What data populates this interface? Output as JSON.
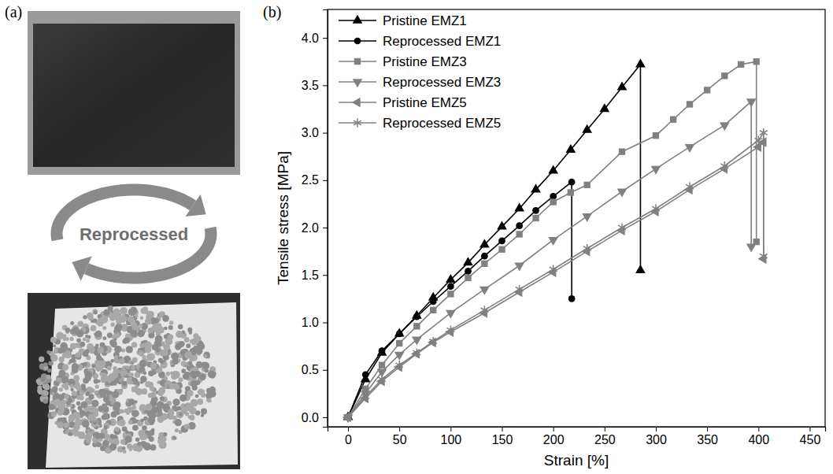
{
  "photos": {
    "panel_label": "(a)",
    "cycle_label": "Reprocessed"
  },
  "chart_data": {
    "type": "line",
    "panel_label": "(b)",
    "x_label": "Strain [%]",
    "y_label": "Tensile stress [MPa]",
    "xlim": [
      -20,
      465
    ],
    "ylim": [
      -0.1,
      4.3
    ],
    "xticks": [
      0,
      50,
      100,
      150,
      200,
      250,
      300,
      350,
      400,
      450
    ],
    "yticks": [
      {
        "value": 0,
        "label": "0.0"
      },
      0.5,
      {
        "value": 1,
        "label": "1.0"
      },
      1.5,
      {
        "value": 2,
        "label": "2.0"
      },
      2.5,
      {
        "value": 3,
        "label": "3.0"
      },
      3.5,
      {
        "value": 4,
        "label": "4.0"
      }
    ],
    "grid": false,
    "legend": "upper left",
    "line_style": "solid",
    "series": [
      {
        "name": "Pristine EMZ1",
        "color": "#000000",
        "marker": "triangle-up",
        "x": [
          0,
          17,
          33,
          50,
          67,
          83,
          100,
          117,
          133,
          150,
          167,
          183,
          200,
          217,
          233,
          250,
          267,
          285,
          285
        ],
        "values": [
          0,
          0.4,
          0.68,
          0.88,
          1.07,
          1.26,
          1.45,
          1.63,
          1.82,
          2.01,
          2.2,
          2.4,
          2.6,
          2.82,
          3.03,
          3.25,
          3.48,
          3.72,
          1.55
        ]
      },
      {
        "name": "Reprocessed EMZ1",
        "color": "#000000",
        "marker": "circle",
        "x": [
          0,
          17,
          33,
          50,
          67,
          83,
          100,
          117,
          133,
          150,
          167,
          183,
          200,
          218,
          218
        ],
        "values": [
          0,
          0.45,
          0.7,
          0.88,
          1.06,
          1.22,
          1.38,
          1.54,
          1.7,
          1.86,
          2.02,
          2.18,
          2.33,
          2.48,
          1.25
        ]
      },
      {
        "name": "Pristine EMZ3",
        "color": "#808080",
        "marker": "square",
        "x": [
          0,
          17,
          33,
          50,
          67,
          83,
          100,
          117,
          133,
          150,
          167,
          183,
          200,
          217,
          233,
          267,
          300,
          317,
          333,
          350,
          367,
          383,
          398,
          398
        ],
        "values": [
          0,
          0.3,
          0.55,
          0.78,
          0.96,
          1.13,
          1.3,
          1.47,
          1.62,
          1.77,
          1.93,
          2.1,
          2.27,
          2.37,
          2.45,
          2.8,
          2.97,
          3.14,
          3.3,
          3.45,
          3.6,
          3.72,
          3.75,
          1.85
        ]
      },
      {
        "name": "Reprocessed EMZ3",
        "color": "#808080",
        "marker": "triangle-down",
        "x": [
          0,
          17,
          33,
          50,
          67,
          100,
          133,
          167,
          200,
          233,
          267,
          300,
          333,
          367,
          393,
          393
        ],
        "values": [
          0,
          0.25,
          0.48,
          0.66,
          0.82,
          1.1,
          1.35,
          1.6,
          1.87,
          2.12,
          2.38,
          2.62,
          2.85,
          3.08,
          3.33,
          1.8
        ]
      },
      {
        "name": "Pristine EMZ5",
        "color": "#808080",
        "marker": "triangle-left",
        "x": [
          0,
          17,
          33,
          50,
          67,
          83,
          100,
          133,
          167,
          200,
          233,
          267,
          300,
          333,
          367,
          400,
          405,
          405
        ],
        "values": [
          0,
          0.2,
          0.38,
          0.53,
          0.67,
          0.79,
          0.9,
          1.1,
          1.32,
          1.53,
          1.75,
          1.97,
          2.17,
          2.4,
          2.62,
          2.85,
          2.9,
          1.67
        ]
      },
      {
        "name": "Reprocessed EMZ5",
        "color": "#808080",
        "marker": "asterisk",
        "x": [
          0,
          17,
          33,
          50,
          67,
          83,
          100,
          133,
          167,
          200,
          233,
          267,
          300,
          333,
          367,
          400,
          405,
          405
        ],
        "values": [
          0,
          0.22,
          0.4,
          0.55,
          0.68,
          0.8,
          0.92,
          1.13,
          1.35,
          1.56,
          1.78,
          2.0,
          2.2,
          2.43,
          2.65,
          2.92,
          3.0,
          1.7
        ]
      }
    ]
  }
}
